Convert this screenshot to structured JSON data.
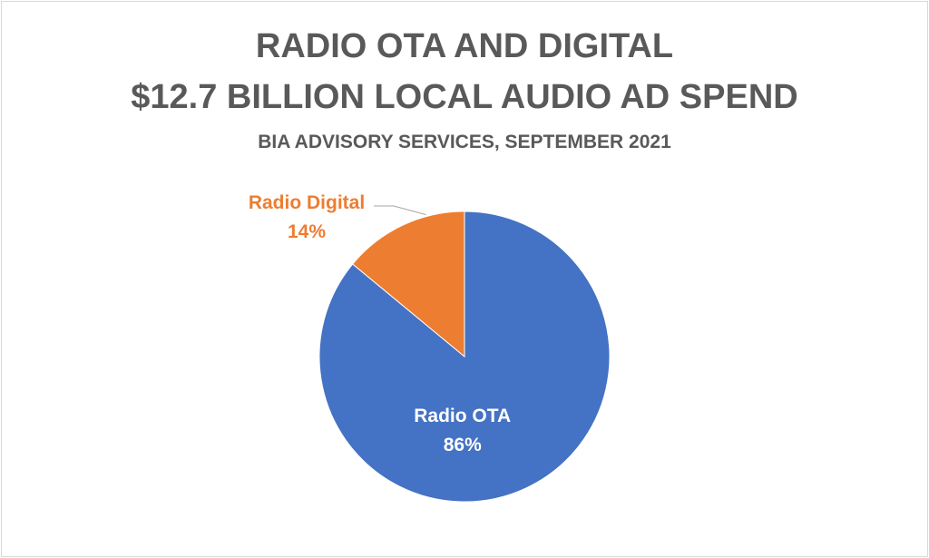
{
  "chart_data": {
    "type": "pie",
    "title": "RADIO OTA AND DIGITAL",
    "title_line2": "$12.7 BILLION LOCAL AUDIO AD SPEND",
    "subtitle": "BIA ADVISORY SERVICES, SEPTEMBER 2021",
    "slices": [
      {
        "label": "Radio OTA",
        "value": 86,
        "value_text": "86%",
        "color": "#4472c4",
        "label_color": "#ffffff"
      },
      {
        "label": "Radio Digital",
        "value": 14,
        "value_text": "14%",
        "color": "#ed7d31",
        "label_color": "#ed7d31"
      }
    ],
    "legend": false
  }
}
